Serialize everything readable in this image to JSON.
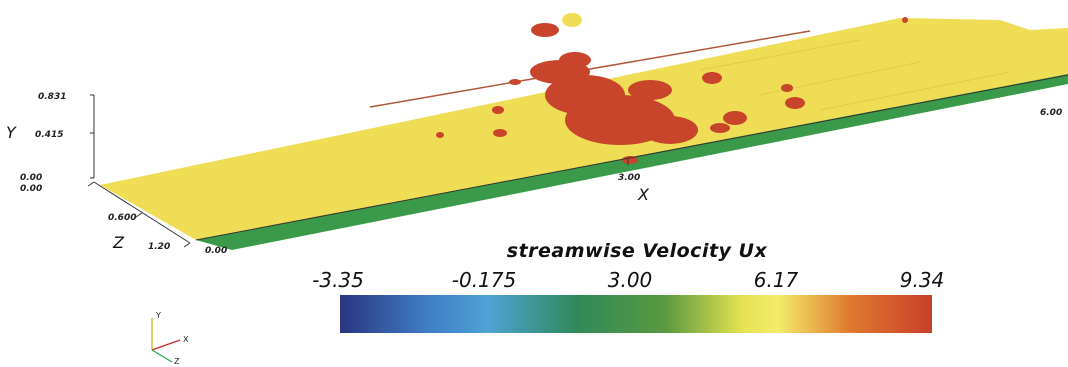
{
  "axes": {
    "x": {
      "label": "X",
      "ticks": [
        "3.00",
        "6.00"
      ]
    },
    "y": {
      "label": "Y",
      "ticks": [
        "0.831",
        "0.415",
        "0.00"
      ]
    },
    "z": {
      "label": "Z",
      "ticks": [
        "0.00",
        "0.600",
        "1.20"
      ]
    },
    "origin_label": "0.00"
  },
  "colorbar": {
    "title": "streamwise Velocity Ux",
    "labels": [
      "-3.35",
      "-0.175",
      "3.00",
      "6.17",
      "9.34"
    ],
    "colors": [
      "#2b3a8a",
      "#3a8fd0",
      "#2e8a55",
      "#f2e860",
      "#c8402a"
    ]
  },
  "orientation_triad": {
    "labels": [
      "Y",
      "X",
      "Z"
    ]
  },
  "colors": {
    "surface": "#eedd55",
    "blobs": "#c8442a",
    "edge": "#3a9a4a"
  }
}
